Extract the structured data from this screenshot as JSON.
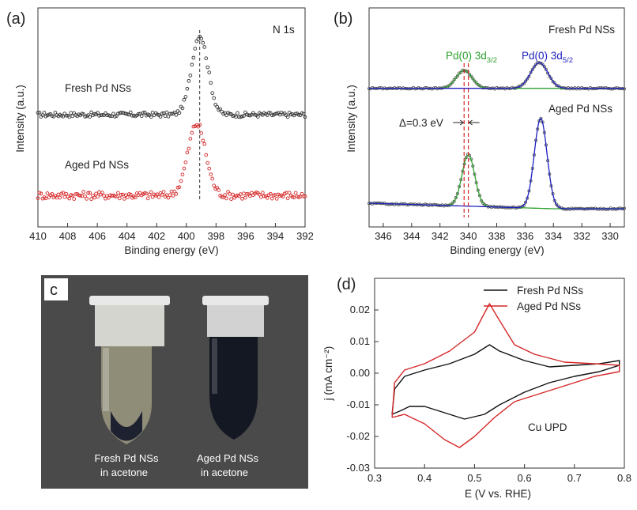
{
  "chart_data": [
    {
      "panel_label": "(a)",
      "type": "scatter",
      "annotation": "N 1s",
      "xlabel": "Binding energy (eV)",
      "ylabel": "Intensity (a.u.)",
      "xlim": [
        410,
        392
      ],
      "x_ticks": [
        410,
        408,
        406,
        404,
        402,
        400,
        398,
        396,
        394,
        392
      ],
      "y_ticks": [],
      "reference_line_x": 399.1,
      "series": [
        {
          "name": "Fresh Pd NSs",
          "color": "#333333",
          "marker": "open-circle",
          "baseline": 0.0,
          "peak_center": 399.1,
          "peak_height": 1.0,
          "peak_width": 0.55,
          "noise": 0.03
        },
        {
          "name": "Aged Pd NSs",
          "color": "#d62728",
          "marker": "open-circle",
          "baseline": 0.0,
          "peak_center": 399.3,
          "peak_height": 0.95,
          "peak_width": 0.6,
          "noise": 0.05
        }
      ]
    },
    {
      "panel_label": "(b)",
      "type": "line",
      "xlabel": "Binding energy (eV)",
      "ylabel": "Intensity (a.u.)",
      "xlim": [
        347,
        329
      ],
      "x_ticks": [
        346,
        344,
        342,
        340,
        338,
        336,
        334,
        332,
        330
      ],
      "y_ticks": [],
      "peak_labels": [
        "Pd(0) 3d3/2",
        "Pd(0) 3d5/2"
      ],
      "peak_label_parts": [
        {
          "main": "Pd(0) 3d",
          "sub": "3/2",
          "color": "#2ca02c"
        },
        {
          "main": "Pd(0) 3d",
          "sub": "5/2",
          "color": "#1f1fbf"
        }
      ],
      "shift_annotation": "Δ=0.3 eV",
      "dashed_lines_x": [
        340.3,
        340.0
      ],
      "series": [
        {
          "name": "Fresh Pd NSs",
          "peaks": [
            {
              "center": 340.3,
              "height": 0.35,
              "width": 0.55
            },
            {
              "center": 335.0,
              "height": 0.5,
              "width": 0.6
            }
          ]
        },
        {
          "name": "Aged Pd NSs",
          "peaks": [
            {
              "center": 340.0,
              "height": 1.0,
              "width": 0.45
            },
            {
              "center": 334.9,
              "height": 1.75,
              "width": 0.45
            }
          ]
        }
      ],
      "colors": {
        "data": "#555555",
        "pd32": "#2ca02c",
        "pd52": "#1f1fbf",
        "ref": "#d62728"
      }
    },
    {
      "panel_label": "c",
      "type": "photo",
      "captions": [
        {
          "line1": "Fresh Pd NSs",
          "line2": "in acetone"
        },
        {
          "line1": "Aged Pd NSs",
          "line2": "in acetone"
        }
      ]
    },
    {
      "panel_label": "(d)",
      "type": "line",
      "annotation": "Cu UPD",
      "xlabel": "E (V vs. RHE)",
      "ylabel": "j (mA cm⁻²)",
      "xlim": [
        0.3,
        0.8
      ],
      "ylim": [
        -0.03,
        0.03
      ],
      "x_ticks": [
        0.3,
        0.4,
        0.5,
        0.6,
        0.7,
        0.8
      ],
      "y_ticks": [
        -0.03,
        -0.02,
        -0.01,
        0.0,
        0.01,
        0.02
      ],
      "y_tick_labels": [
        "-0.03",
        "-0.02",
        "-0.01",
        "0.00",
        "0.01",
        "0.02"
      ],
      "series": [
        {
          "name": "Fresh Pd NSs",
          "color": "#111111",
          "points": [
            [
              0.335,
              -0.013
            ],
            [
              0.34,
              -0.005
            ],
            [
              0.36,
              -0.001
            ],
            [
              0.4,
              0.001
            ],
            [
              0.45,
              0.003
            ],
            [
              0.5,
              0.006
            ],
            [
              0.53,
              0.009
            ],
            [
              0.55,
              0.007
            ],
            [
              0.6,
              0.004
            ],
            [
              0.65,
              0.002
            ],
            [
              0.7,
              0.0025
            ],
            [
              0.75,
              0.003
            ],
            [
              0.79,
              0.004
            ],
            [
              0.79,
              0.0025
            ],
            [
              0.75,
              0.0005
            ],
            [
              0.7,
              -0.001
            ],
            [
              0.65,
              -0.003
            ],
            [
              0.6,
              -0.006
            ],
            [
              0.55,
              -0.01
            ],
            [
              0.52,
              -0.013
            ],
            [
              0.48,
              -0.0145
            ],
            [
              0.45,
              -0.013
            ],
            [
              0.4,
              -0.0105
            ],
            [
              0.37,
              -0.0105
            ],
            [
              0.35,
              -0.012
            ],
            [
              0.335,
              -0.013
            ]
          ]
        },
        {
          "name": "Aged Pd NSs",
          "color": "#d62728",
          "points": [
            [
              0.335,
              -0.014
            ],
            [
              0.34,
              -0.003
            ],
            [
              0.36,
              0.001
            ],
            [
              0.4,
              0.003
            ],
            [
              0.45,
              0.007
            ],
            [
              0.5,
              0.013
            ],
            [
              0.52,
              0.019
            ],
            [
              0.53,
              0.022
            ],
            [
              0.545,
              0.018
            ],
            [
              0.58,
              0.009
            ],
            [
              0.62,
              0.006
            ],
            [
              0.68,
              0.0035
            ],
            [
              0.74,
              0.003
            ],
            [
              0.79,
              0.0025
            ],
            [
              0.79,
              0.0005
            ],
            [
              0.74,
              -0.001
            ],
            [
              0.68,
              -0.004
            ],
            [
              0.62,
              -0.007
            ],
            [
              0.58,
              -0.009
            ],
            [
              0.54,
              -0.014
            ],
            [
              0.5,
              -0.02
            ],
            [
              0.47,
              -0.0235
            ],
            [
              0.44,
              -0.021
            ],
            [
              0.4,
              -0.016
            ],
            [
              0.36,
              -0.013
            ],
            [
              0.335,
              -0.014
            ]
          ]
        }
      ]
    }
  ]
}
